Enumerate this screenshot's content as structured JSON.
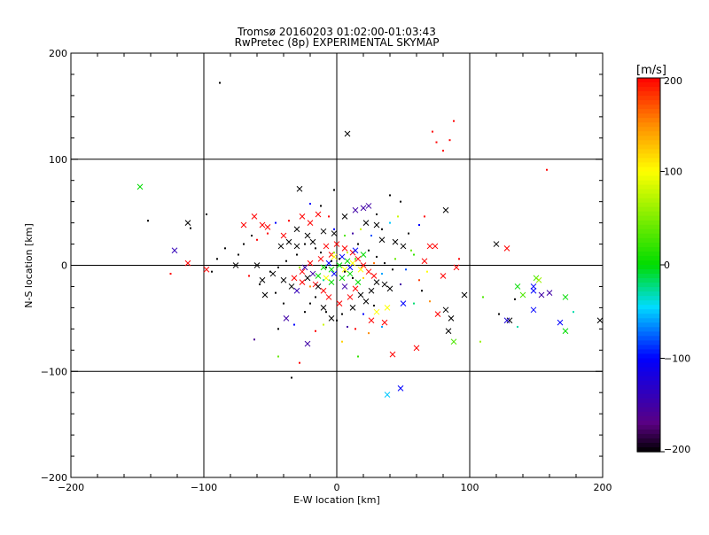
{
  "chart_data": {
    "type": "scatter",
    "title": "Tromsø 20160203 01:02:00-01:03:43",
    "subtitle": "RwPretec (8p) EXPERIMENTAL SKYMAP",
    "xlabel": "E-W location [km]",
    "ylabel": "N-S location [km]",
    "xlim": [
      -200,
      200
    ],
    "ylim": [
      -200,
      200
    ],
    "xticks": [
      -200,
      -100,
      0,
      100,
      200
    ],
    "yticks": [
      -200,
      -100,
      0,
      100,
      200
    ],
    "grid": true,
    "colorbar": {
      "label": "[m/s]",
      "range": [
        -200,
        200
      ],
      "ticks": [
        200,
        100,
        0,
        -100,
        -200
      ],
      "colormap": "rainbow (black-purple-blue-cyan-green-yellow-orange-red)"
    },
    "marker_types": [
      "x",
      "point"
    ],
    "points": [
      [
        -88,
        172,
        -200,
        "p"
      ],
      [
        8,
        124,
        -200,
        "x"
      ],
      [
        85,
        118,
        200,
        "p"
      ],
      [
        75,
        116,
        200,
        "p"
      ],
      [
        88,
        136,
        200,
        "p"
      ],
      [
        72,
        126,
        200,
        "p"
      ],
      [
        80,
        108,
        200,
        "p"
      ],
      [
        158,
        90,
        200,
        "p"
      ],
      [
        -148,
        74,
        0,
        "x"
      ],
      [
        -28,
        72,
        -200,
        "x"
      ],
      [
        -2,
        71,
        -200,
        "p"
      ],
      [
        40,
        66,
        -200,
        "p"
      ],
      [
        48,
        60,
        -200,
        "p"
      ],
      [
        -112,
        40,
        -200,
        "x"
      ],
      [
        -142,
        42,
        -200,
        "p"
      ],
      [
        -110,
        35,
        -200,
        "p"
      ],
      [
        -98,
        48,
        -200,
        "p"
      ],
      [
        -122,
        14,
        -140,
        "x"
      ],
      [
        -112,
        2,
        200,
        "x"
      ],
      [
        -98,
        -4,
        200,
        "x"
      ],
      [
        -125,
        -8,
        200,
        "p"
      ],
      [
        -76,
        0,
        -200,
        "x"
      ],
      [
        -60,
        0,
        -200,
        "x"
      ],
      [
        -62,
        46,
        200,
        "x"
      ],
      [
        -56,
        38,
        200,
        "x"
      ],
      [
        -70,
        38,
        200,
        "x"
      ],
      [
        -52,
        36,
        200,
        "x"
      ],
      [
        -40,
        28,
        200,
        "x"
      ],
      [
        -26,
        46,
        200,
        "x"
      ],
      [
        -20,
        40,
        200,
        "x"
      ],
      [
        -14,
        48,
        200,
        "x"
      ],
      [
        -30,
        34,
        -200,
        "x"
      ],
      [
        -22,
        28,
        -200,
        "x"
      ],
      [
        -36,
        22,
        -200,
        "x"
      ],
      [
        -42,
        18,
        -200,
        "x"
      ],
      [
        -30,
        18,
        -200,
        "x"
      ],
      [
        -18,
        22,
        -200,
        "x"
      ],
      [
        -10,
        32,
        -200,
        "x"
      ],
      [
        -2,
        30,
        -200,
        "x"
      ],
      [
        6,
        46,
        -200,
        "x"
      ],
      [
        14,
        52,
        -150,
        "x"
      ],
      [
        20,
        54,
        -150,
        "x"
      ],
      [
        24,
        56,
        -150,
        "x"
      ],
      [
        22,
        40,
        -200,
        "x"
      ],
      [
        30,
        38,
        -200,
        "x"
      ],
      [
        34,
        24,
        -200,
        "x"
      ],
      [
        44,
        22,
        -200,
        "x"
      ],
      [
        50,
        18,
        -200,
        "x"
      ],
      [
        -8,
        18,
        200,
        "x"
      ],
      [
        0,
        20,
        200,
        "x"
      ],
      [
        6,
        16,
        200,
        "x"
      ],
      [
        12,
        12,
        200,
        "x"
      ],
      [
        16,
        6,
        200,
        "x"
      ],
      [
        20,
        0,
        200,
        "x"
      ],
      [
        24,
        -6,
        200,
        "x"
      ],
      [
        28,
        -10,
        200,
        "x"
      ],
      [
        -4,
        10,
        200,
        "x"
      ],
      [
        -12,
        6,
        200,
        "x"
      ],
      [
        -20,
        2,
        200,
        "x"
      ],
      [
        -26,
        -6,
        200,
        "x"
      ],
      [
        -32,
        -12,
        200,
        "x"
      ],
      [
        -26,
        -16,
        200,
        "x"
      ],
      [
        -16,
        -18,
        200,
        "x"
      ],
      [
        -10,
        -24,
        200,
        "x"
      ],
      [
        -6,
        -30,
        200,
        "x"
      ],
      [
        2,
        -36,
        200,
        "x"
      ],
      [
        10,
        -30,
        200,
        "x"
      ],
      [
        14,
        -22,
        200,
        "x"
      ],
      [
        -4,
        -4,
        0,
        "x"
      ],
      [
        2,
        0,
        0,
        "x"
      ],
      [
        8,
        4,
        0,
        "x"
      ],
      [
        -10,
        -2,
        0,
        "x"
      ],
      [
        4,
        -12,
        0,
        "x"
      ],
      [
        -14,
        -10,
        0,
        "x"
      ],
      [
        10,
        -8,
        0,
        "x"
      ],
      [
        16,
        -16,
        0,
        "x"
      ],
      [
        -4,
        -16,
        0,
        "x"
      ],
      [
        20,
        10,
        0,
        "x"
      ],
      [
        -6,
        2,
        -100,
        "x"
      ],
      [
        4,
        8,
        -100,
        "x"
      ],
      [
        10,
        -2,
        -100,
        "x"
      ],
      [
        -2,
        -8,
        -100,
        "x"
      ],
      [
        14,
        14,
        -100,
        "x"
      ],
      [
        -18,
        -8,
        -150,
        "x"
      ],
      [
        -24,
        -2,
        -150,
        "x"
      ],
      [
        6,
        -20,
        -150,
        "x"
      ],
      [
        -2,
        8,
        100,
        "x"
      ],
      [
        6,
        -4,
        100,
        "x"
      ],
      [
        12,
        2,
        100,
        "x"
      ],
      [
        -8,
        -12,
        100,
        "x"
      ],
      [
        18,
        -4,
        100,
        "x"
      ],
      [
        -40,
        -14,
        -200,
        "x"
      ],
      [
        -34,
        -20,
        -200,
        "x"
      ],
      [
        -22,
        -12,
        -200,
        "x"
      ],
      [
        -14,
        -20,
        -200,
        "x"
      ],
      [
        -48,
        -8,
        -200,
        "x"
      ],
      [
        -56,
        -14,
        -200,
        "x"
      ],
      [
        30,
        -16,
        -200,
        "x"
      ],
      [
        36,
        -18,
        -200,
        "x"
      ],
      [
        40,
        -22,
        -200,
        "x"
      ],
      [
        26,
        -24,
        -200,
        "x"
      ],
      [
        18,
        -28,
        -200,
        "x"
      ],
      [
        22,
        -34,
        -200,
        "x"
      ],
      [
        12,
        -40,
        -200,
        "x"
      ],
      [
        -54,
        -28,
        -200,
        "x"
      ],
      [
        -30,
        -24,
        -140,
        "x"
      ],
      [
        -10,
        -40,
        -200,
        "x"
      ],
      [
        -4,
        -50,
        -200,
        "x"
      ],
      [
        -38,
        -50,
        -150,
        "x"
      ],
      [
        -22,
        -74,
        -150,
        "x"
      ],
      [
        -28,
        -92,
        200,
        "p"
      ],
      [
        -34,
        -106,
        -200,
        "p"
      ],
      [
        48,
        -116,
        -100,
        "x"
      ],
      [
        38,
        -122,
        -50,
        "x"
      ],
      [
        50,
        -36,
        -100,
        "x"
      ],
      [
        38,
        -40,
        100,
        "x"
      ],
      [
        30,
        -44,
        100,
        "x"
      ],
      [
        26,
        -52,
        200,
        "x"
      ],
      [
        36,
        -54,
        200,
        "x"
      ],
      [
        42,
        -84,
        200,
        "x"
      ],
      [
        60,
        -78,
        200,
        "x"
      ],
      [
        76,
        -46,
        200,
        "x"
      ],
      [
        82,
        -42,
        -200,
        "x"
      ],
      [
        86,
        -50,
        -200,
        "x"
      ],
      [
        84,
        -62,
        -200,
        "x"
      ],
      [
        88,
        -72,
        30,
        "x"
      ],
      [
        96,
        -28,
        -200,
        "x"
      ],
      [
        80,
        -10,
        200,
        "x"
      ],
      [
        90,
        -2,
        200,
        "x"
      ],
      [
        74,
        18,
        200,
        "x"
      ],
      [
        70,
        18,
        200,
        "x"
      ],
      [
        92,
        6,
        200,
        "p"
      ],
      [
        82,
        52,
        -200,
        "x"
      ],
      [
        66,
        4,
        200,
        "x"
      ],
      [
        120,
        20,
        -200,
        "x"
      ],
      [
        128,
        16,
        200,
        "x"
      ],
      [
        130,
        -52,
        -200,
        "x"
      ],
      [
        128,
        -52,
        -120,
        "x"
      ],
      [
        136,
        -20,
        0,
        "x"
      ],
      [
        140,
        -28,
        30,
        "x"
      ],
      [
        148,
        -20,
        -100,
        "x"
      ],
      [
        148,
        -24,
        -100,
        "x"
      ],
      [
        150,
        -12,
        30,
        "x"
      ],
      [
        148,
        -42,
        -100,
        "x"
      ],
      [
        152,
        -14,
        60,
        "x"
      ],
      [
        154,
        -28,
        -150,
        "x"
      ],
      [
        160,
        -26,
        -150,
        "x"
      ],
      [
        168,
        -54,
        -100,
        "x"
      ],
      [
        172,
        -30,
        0,
        "x"
      ],
      [
        172,
        -62,
        0,
        "x"
      ],
      [
        178,
        -44,
        -30,
        "p"
      ],
      [
        198,
        -52,
        -200,
        "x"
      ],
      [
        110,
        -30,
        30,
        "p"
      ],
      [
        108,
        -72,
        60,
        "p"
      ],
      [
        122,
        -46,
        -200,
        "p"
      ],
      [
        134,
        -32,
        -200,
        "p"
      ],
      [
        136,
        -58,
        -30,
        "p"
      ],
      [
        -8,
        -2,
        -200,
        "p"
      ],
      [
        -4,
        4,
        -200,
        "p"
      ],
      [
        2,
        6,
        -200,
        "p"
      ],
      [
        6,
        -6,
        -200,
        "p"
      ],
      [
        12,
        -12,
        -200,
        "p"
      ],
      [
        -12,
        12,
        -200,
        "p"
      ],
      [
        -16,
        16,
        -200,
        "p"
      ],
      [
        -24,
        20,
        -200,
        "p"
      ],
      [
        -30,
        10,
        -200,
        "p"
      ],
      [
        -38,
        4,
        -200,
        "p"
      ],
      [
        -44,
        -2,
        -200,
        "p"
      ],
      [
        -50,
        -6,
        -200,
        "p"
      ],
      [
        16,
        20,
        -200,
        "p"
      ],
      [
        24,
        14,
        -200,
        "p"
      ],
      [
        30,
        8,
        -200,
        "p"
      ],
      [
        36,
        2,
        -200,
        "p"
      ],
      [
        42,
        -4,
        -200,
        "p"
      ],
      [
        -16,
        -30,
        -200,
        "p"
      ],
      [
        -20,
        -36,
        -200,
        "p"
      ],
      [
        -8,
        -44,
        -200,
        "p"
      ],
      [
        0,
        -52,
        -200,
        "p"
      ],
      [
        4,
        -46,
        -200,
        "p"
      ],
      [
        -2,
        12,
        60,
        "p"
      ],
      [
        8,
        12,
        80,
        "p"
      ],
      [
        14,
        6,
        30,
        "p"
      ],
      [
        -10,
        -14,
        -30,
        "p"
      ],
      [
        20,
        -12,
        120,
        "p"
      ],
      [
        28,
        2,
        160,
        "p"
      ],
      [
        -20,
        -20,
        150,
        "p"
      ],
      [
        -28,
        -2,
        60,
        "p"
      ],
      [
        34,
        -8,
        -60,
        "p"
      ],
      [
        44,
        6,
        40,
        "p"
      ],
      [
        52,
        -4,
        -80,
        "p"
      ],
      [
        58,
        10,
        20,
        "p"
      ],
      [
        62,
        -14,
        180,
        "p"
      ],
      [
        -60,
        24,
        200,
        "p"
      ],
      [
        -70,
        20,
        -200,
        "p"
      ],
      [
        -74,
        10,
        -200,
        "p"
      ],
      [
        -84,
        16,
        -200,
        "p"
      ],
      [
        -90,
        6,
        -200,
        "p"
      ],
      [
        -94,
        -6,
        -200,
        "p"
      ],
      [
        -66,
        -10,
        200,
        "p"
      ],
      [
        -58,
        -18,
        -200,
        "p"
      ],
      [
        -46,
        -26,
        -200,
        "p"
      ],
      [
        -40,
        -36,
        -200,
        "p"
      ],
      [
        -24,
        -44,
        -200,
        "p"
      ],
      [
        -32,
        -56,
        -100,
        "p"
      ],
      [
        -44,
        -60,
        -200,
        "p"
      ],
      [
        -62,
        -70,
        -160,
        "p"
      ],
      [
        -44,
        -86,
        40,
        "p"
      ],
      [
        14,
        -60,
        200,
        "p"
      ],
      [
        24,
        -64,
        150,
        "p"
      ],
      [
        34,
        -58,
        -60,
        "p"
      ],
      [
        16,
        -86,
        20,
        "p"
      ],
      [
        4,
        -72,
        120,
        "p"
      ],
      [
        54,
        30,
        -200,
        "p"
      ],
      [
        62,
        38,
        -100,
        "p"
      ],
      [
        46,
        46,
        80,
        "p"
      ],
      [
        66,
        46,
        200,
        "p"
      ],
      [
        56,
        14,
        40,
        "p"
      ],
      [
        48,
        -18,
        -150,
        "p"
      ],
      [
        64,
        -24,
        -200,
        "p"
      ],
      [
        70,
        -34,
        150,
        "p"
      ],
      [
        58,
        -36,
        -20,
        "p"
      ],
      [
        68,
        -6,
        100,
        "p"
      ],
      [
        -6,
        46,
        200,
        "p"
      ],
      [
        -12,
        56,
        -200,
        "p"
      ],
      [
        -20,
        58,
        -100,
        "p"
      ],
      [
        -36,
        42,
        200,
        "p"
      ],
      [
        -46,
        40,
        -100,
        "p"
      ],
      [
        -52,
        30,
        200,
        "p"
      ],
      [
        -64,
        28,
        -200,
        "p"
      ],
      [
        -2,
        34,
        -100,
        "p"
      ],
      [
        6,
        28,
        30,
        "p"
      ],
      [
        12,
        30,
        -150,
        "p"
      ],
      [
        18,
        34,
        80,
        "p"
      ],
      [
        26,
        28,
        -80,
        "p"
      ],
      [
        34,
        34,
        -200,
        "p"
      ],
      [
        40,
        40,
        -50,
        "p"
      ],
      [
        30,
        48,
        -200,
        "p"
      ],
      [
        -10,
        -56,
        80,
        "p"
      ],
      [
        -16,
        -62,
        200,
        "p"
      ],
      [
        8,
        -58,
        -150,
        "p"
      ],
      [
        20,
        -46,
        -100,
        "p"
      ],
      [
        28,
        -38,
        -200,
        "p"
      ]
    ]
  }
}
